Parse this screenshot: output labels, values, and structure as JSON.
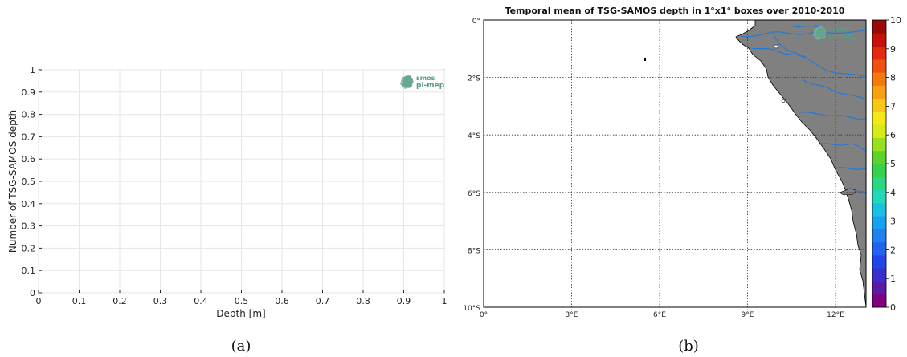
{
  "logo": {
    "line1": "smos",
    "line2": "pi-mep",
    "color": "#5a9c86"
  },
  "chart_data": [
    {
      "type": "histogram",
      "panel_label": "(a)",
      "xlabel": "Depth [m]",
      "ylabel": "Number of TSG-SAMOS depth",
      "xlim": [
        0,
        1
      ],
      "ylim": [
        0,
        1
      ],
      "xticks": [
        "0",
        "0.1",
        "0.2",
        "0.3",
        "0.4",
        "0.5",
        "0.6",
        "0.7",
        "0.8",
        "0.9",
        "1"
      ],
      "yticks": [
        "0",
        "0.1",
        "0.2",
        "0.3",
        "0.4",
        "0.5",
        "0.6",
        "0.7",
        "0.8",
        "0.9",
        "1"
      ],
      "values": [],
      "grid": true
    },
    {
      "type": "heatmap",
      "panel_label": "(b)",
      "title": "Temporal mean of TSG-SAMOS depth in 1°x1° boxes over 2010-2010",
      "lon_ticks": [
        "0°",
        "3°E",
        "6°E",
        "9°E",
        "12°E"
      ],
      "lat_ticks": [
        "0°",
        "2°S",
        "4°S",
        "6°S",
        "8°S",
        "10°S"
      ],
      "colorbar": {
        "ticks": [
          "0",
          "1",
          "2",
          "3",
          "4",
          "5",
          "6",
          "7",
          "8",
          "9",
          "10"
        ],
        "min": 0,
        "max": 10,
        "colors": [
          "#800080",
          "#5a1aa6",
          "#3a2fcc",
          "#2245e8",
          "#1f63f0",
          "#1f82f0",
          "#1aa0f0",
          "#1ac0e0",
          "#22d8b8",
          "#2ad880",
          "#36d04a",
          "#5cd22a",
          "#9ade1e",
          "#d6ea18",
          "#f4e816",
          "#f8c814",
          "#f8a012",
          "#f47a10",
          "#ee520e",
          "#e42a0c",
          "#c8100a",
          "#9a0808"
        ]
      },
      "land_color": "#808080",
      "river_color": "#1f78d8",
      "values": []
    }
  ]
}
